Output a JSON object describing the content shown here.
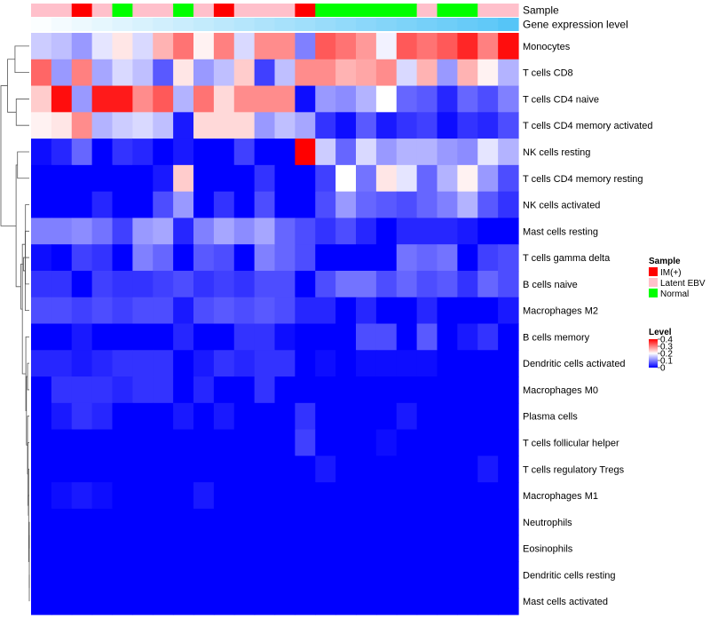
{
  "chart_data": {
    "type": "heatmap",
    "annotation_labels": {
      "sample": "Sample",
      "gene_expression": "Gene expression level"
    },
    "column_sample_groups": [
      "Latent EBV",
      "Latent EBV",
      "IM(+)",
      "Latent EBV",
      "Normal",
      "Latent EBV",
      "Latent EBV",
      "Normal",
      "Latent EBV",
      "IM(+)",
      "Latent EBV",
      "Latent EBV",
      "Latent EBV",
      "IM(+)",
      "Normal",
      "Normal",
      "Normal",
      "Normal",
      "Normal",
      "Latent EBV",
      "Normal",
      "Normal",
      "Latent EBV",
      "Latent EBV"
    ],
    "column_expression_levels": [
      0.02,
      0.06,
      0.1,
      0.14,
      0.18,
      0.22,
      0.26,
      0.3,
      0.34,
      0.38,
      0.42,
      0.46,
      0.5,
      0.54,
      0.58,
      0.62,
      0.66,
      0.7,
      0.74,
      0.78,
      0.82,
      0.86,
      0.9,
      0.96
    ],
    "rows": [
      {
        "label": "Monocytes",
        "values": [
          0.16,
          0.15,
          0.12,
          0.18,
          0.22,
          0.17,
          0.26,
          0.31,
          0.21,
          0.3,
          0.17,
          0.29,
          0.29,
          0.1,
          0.33,
          0.31,
          0.28,
          0.19,
          0.33,
          0.31,
          0.33,
          0.37,
          0.3,
          0.39
        ]
      },
      {
        "label": "T cells CD8",
        "values": [
          0.32,
          0.12,
          0.3,
          0.13,
          0.17,
          0.15,
          0.07,
          0.22,
          0.12,
          0.15,
          0.24,
          0.05,
          0.15,
          0.29,
          0.29,
          0.26,
          0.27,
          0.29,
          0.17,
          0.26,
          0.12,
          0.26,
          0.21,
          0.14
        ]
      },
      {
        "label": "T cells CD4 naive",
        "values": [
          0.24,
          0.39,
          0.12,
          0.38,
          0.38,
          0.29,
          0.33,
          0.14,
          0.31,
          0.23,
          0.29,
          0.29,
          0.29,
          0.01,
          0.12,
          0.11,
          0.14,
          0.2,
          0.08,
          0.07,
          0.03,
          0.08,
          0.06,
          0.1
        ]
      },
      {
        "label": "T cells CD4 memory activated",
        "values": [
          0.21,
          0.22,
          0.29,
          0.14,
          0.16,
          0.17,
          0.15,
          0.02,
          0.23,
          0.23,
          0.23,
          0.12,
          0.15,
          0.13,
          0.04,
          0.01,
          0.07,
          0.02,
          0.04,
          0.05,
          0.01,
          0.04,
          0.03,
          0.06
        ]
      },
      {
        "label": "NK cells resting",
        "values": [
          0.01,
          0.03,
          0.08,
          0.0,
          0.04,
          0.03,
          0.0,
          0.02,
          0.0,
          0.0,
          0.05,
          0.0,
          0.0,
          0.4,
          0.16,
          0.08,
          0.17,
          0.12,
          0.14,
          0.14,
          0.12,
          0.11,
          0.18,
          0.14
        ]
      },
      {
        "label": "T cells CD4 memory resting",
        "values": [
          0.0,
          0.0,
          0.0,
          0.0,
          0.0,
          0.0,
          0.02,
          0.24,
          0.0,
          0.0,
          0.0,
          0.04,
          0.0,
          0.0,
          0.05,
          0.2,
          0.09,
          0.22,
          0.18,
          0.08,
          0.14,
          0.21,
          0.12,
          0.06
        ]
      },
      {
        "label": "NK cells activated",
        "values": [
          0.0,
          0.0,
          0.0,
          0.03,
          0.0,
          0.0,
          0.06,
          0.12,
          0.0,
          0.04,
          0.0,
          0.06,
          0.0,
          0.0,
          0.06,
          0.12,
          0.08,
          0.07,
          0.06,
          0.08,
          0.1,
          0.14,
          0.07,
          0.04
        ]
      },
      {
        "label": "Mast cells resting",
        "values": [
          0.1,
          0.1,
          0.11,
          0.09,
          0.05,
          0.12,
          0.13,
          0.03,
          0.1,
          0.13,
          0.11,
          0.13,
          0.08,
          0.06,
          0.04,
          0.06,
          0.03,
          0.0,
          0.03,
          0.03,
          0.03,
          0.02,
          0.0,
          0.0
        ]
      },
      {
        "label": "T cells gamma delta",
        "values": [
          0.01,
          0.0,
          0.05,
          0.04,
          0.0,
          0.1,
          0.08,
          0.0,
          0.07,
          0.06,
          0.0,
          0.1,
          0.08,
          0.06,
          0.0,
          0.0,
          0.0,
          0.0,
          0.09,
          0.08,
          0.09,
          0.0,
          0.05,
          0.06
        ]
      },
      {
        "label": "B cells naive",
        "values": [
          0.04,
          0.04,
          0.0,
          0.05,
          0.04,
          0.04,
          0.05,
          0.06,
          0.04,
          0.05,
          0.04,
          0.06,
          0.06,
          0.0,
          0.06,
          0.09,
          0.09,
          0.06,
          0.08,
          0.06,
          0.07,
          0.04,
          0.08,
          0.06
        ]
      },
      {
        "label": "Macrophages M2",
        "values": [
          0.06,
          0.06,
          0.05,
          0.06,
          0.05,
          0.06,
          0.06,
          0.02,
          0.06,
          0.07,
          0.06,
          0.07,
          0.06,
          0.03,
          0.03,
          0.0,
          0.03,
          0.0,
          0.0,
          0.03,
          0.0,
          0.0,
          0.0,
          0.02
        ]
      },
      {
        "label": "B cells memory",
        "values": [
          0.0,
          0.0,
          0.02,
          0.0,
          0.0,
          0.0,
          0.0,
          0.03,
          0.0,
          0.0,
          0.04,
          0.04,
          0.01,
          0.0,
          0.0,
          0.0,
          0.06,
          0.06,
          0.0,
          0.07,
          0.0,
          0.02,
          0.04,
          0.0
        ]
      },
      {
        "label": "Dendritic cells activated",
        "values": [
          0.03,
          0.03,
          0.02,
          0.03,
          0.04,
          0.04,
          0.04,
          0.0,
          0.02,
          0.04,
          0.03,
          0.04,
          0.04,
          0.0,
          0.01,
          0.0,
          0.01,
          0.01,
          0.01,
          0.01,
          0.0,
          0.0,
          0.0,
          0.0
        ]
      },
      {
        "label": "Macrophages M0",
        "values": [
          0.0,
          0.04,
          0.04,
          0.04,
          0.03,
          0.04,
          0.04,
          0.0,
          0.03,
          0.0,
          0.0,
          0.04,
          0.0,
          0.0,
          0.0,
          0.0,
          0.0,
          0.0,
          0.0,
          0.0,
          0.0,
          0.0,
          0.0,
          0.0
        ]
      },
      {
        "label": "Plasma cells",
        "values": [
          0.0,
          0.02,
          0.04,
          0.03,
          0.0,
          0.0,
          0.0,
          0.02,
          0.0,
          0.02,
          0.0,
          0.0,
          0.0,
          0.04,
          0.0,
          0.0,
          0.0,
          0.0,
          0.02,
          0.0,
          0.0,
          0.0,
          0.0,
          0.0
        ]
      },
      {
        "label": "T cells follicular helper",
        "values": [
          0.0,
          0.0,
          0.0,
          0.0,
          0.0,
          0.0,
          0.0,
          0.0,
          0.0,
          0.0,
          0.0,
          0.0,
          0.0,
          0.05,
          0.0,
          0.0,
          0.0,
          0.01,
          0.0,
          0.0,
          0.0,
          0.0,
          0.0,
          0.0
        ]
      },
      {
        "label": "T cells regulatory  Tregs",
        "values": [
          0.0,
          0.0,
          0.0,
          0.0,
          0.0,
          0.0,
          0.0,
          0.0,
          0.0,
          0.0,
          0.0,
          0.0,
          0.0,
          0.0,
          0.02,
          0.0,
          0.0,
          0.0,
          0.0,
          0.0,
          0.0,
          0.0,
          0.02,
          0.0
        ]
      },
      {
        "label": "Macrophages M1",
        "values": [
          0.0,
          0.01,
          0.02,
          0.01,
          0.0,
          0.0,
          0.0,
          0.0,
          0.02,
          0.0,
          0.0,
          0.0,
          0.0,
          0.0,
          0.0,
          0.0,
          0.0,
          0.0,
          0.0,
          0.0,
          0.0,
          0.0,
          0.0,
          0.0
        ]
      },
      {
        "label": "Neutrophils",
        "values": [
          0.0,
          0.0,
          0.0,
          0.0,
          0.0,
          0.0,
          0.0,
          0.0,
          0.0,
          0.0,
          0.0,
          0.0,
          0.0,
          0.0,
          0.0,
          0.0,
          0.0,
          0.0,
          0.0,
          0.0,
          0.0,
          0.0,
          0.0,
          0.0
        ]
      },
      {
        "label": "Eosinophils",
        "values": [
          0.0,
          0.0,
          0.0,
          0.0,
          0.0,
          0.0,
          0.0,
          0.0,
          0.0,
          0.0,
          0.0,
          0.0,
          0.0,
          0.0,
          0.0,
          0.0,
          0.0,
          0.0,
          0.0,
          0.0,
          0.0,
          0.0,
          0.0,
          0.0
        ]
      },
      {
        "label": "Dendritic cells resting",
        "values": [
          0.0,
          0.0,
          0.0,
          0.0,
          0.0,
          0.0,
          0.0,
          0.0,
          0.0,
          0.0,
          0.0,
          0.0,
          0.0,
          0.0,
          0.0,
          0.0,
          0.0,
          0.0,
          0.0,
          0.0,
          0.0,
          0.0,
          0.0,
          0.0
        ]
      },
      {
        "label": "Mast cells activated",
        "values": [
          0.0,
          0.0,
          0.0,
          0.0,
          0.0,
          0.0,
          0.0,
          0.0,
          0.0,
          0.0,
          0.0,
          0.0,
          0.0,
          0.0,
          0.0,
          0.0,
          0.0,
          0.0,
          0.0,
          0.0,
          0.0,
          0.0,
          0.0,
          0.0
        ]
      }
    ],
    "color_scale": {
      "min": 0,
      "max": 0.4,
      "stops": [
        {
          "value": 0,
          "color": "#0000ff"
        },
        {
          "value": 0.2,
          "color": "#ffffff"
        },
        {
          "value": 0.4,
          "color": "#ff0000"
        }
      ],
      "expression_low_color": "#ffffff",
      "expression_high_color": "#4fc3f7"
    },
    "legend": {
      "position": "right",
      "sample_title": "Sample",
      "sample_entries": [
        {
          "label": "IM(+)",
          "color": "#ff0000"
        },
        {
          "label": "Latent EBV",
          "color": "#ffc0cb"
        },
        {
          "label": "Normal",
          "color": "#00ff00"
        }
      ],
      "level_title": "Level",
      "level_ticks": [
        "0.4",
        "0.3",
        "0.2",
        "0.1",
        "0"
      ]
    }
  }
}
